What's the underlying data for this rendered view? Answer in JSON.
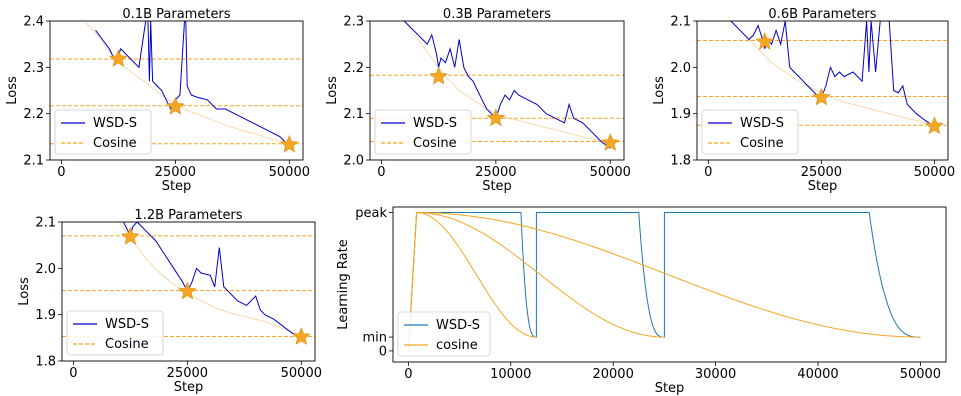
{
  "chart_data": [
    {
      "type": "line",
      "title": "0.1B Parameters",
      "xlabel": "Step",
      "ylabel": "Loss",
      "xlim": [
        -2500,
        53000
      ],
      "ylim": [
        2.1,
        2.4
      ],
      "xticks": [
        0,
        25000,
        50000
      ],
      "yticks": [
        2.1,
        2.2,
        2.3,
        2.4
      ],
      "yticklabels": [
        "2.1",
        "2.2",
        "2.3",
        "2.4"
      ],
      "legend_position": "lower-left",
      "series": [
        {
          "name": "WSD-S",
          "color": "#0000cc",
          "style": "solid",
          "x": [
            7500,
            9000,
            10500,
            12000,
            12500,
            13000,
            15000,
            17000,
            18500,
            19000,
            19300,
            19600,
            20000,
            21000,
            22000,
            23000,
            24000,
            25000,
            26000,
            27000,
            27300,
            27600,
            28500,
            30000,
            32000,
            34000,
            36000,
            38000,
            40000,
            42000,
            44000,
            46000,
            48000,
            49000,
            50000
          ],
          "y": [
            2.38,
            2.36,
            2.34,
            2.31,
            2.325,
            2.34,
            2.32,
            2.3,
            2.4,
            2.4,
            2.27,
            2.4,
            2.27,
            2.26,
            2.25,
            2.23,
            2.21,
            2.23,
            2.24,
            2.4,
            2.4,
            2.26,
            2.24,
            2.235,
            2.23,
            2.21,
            2.21,
            2.2,
            2.19,
            2.18,
            2.17,
            2.16,
            2.15,
            2.14,
            2.13
          ]
        },
        {
          "name": "Cosine",
          "color": "#f5a623",
          "style": "dashed",
          "x": [
            5000,
            8000,
            10000,
            12000,
            14000,
            16000,
            18000,
            20000,
            22000,
            25000,
            28000,
            31000,
            34000,
            37000,
            40000,
            43000,
            46000,
            48000,
            50000
          ],
          "y": [
            2.4,
            2.37,
            2.34,
            2.315,
            2.3,
            2.285,
            2.27,
            2.255,
            2.24,
            2.22,
            2.205,
            2.195,
            2.183,
            2.172,
            2.163,
            2.155,
            2.145,
            2.14,
            2.135
          ]
        }
      ],
      "hlines": [
        2.318,
        2.217,
        2.135
      ],
      "stars": [
        [
          12500,
          2.318
        ],
        [
          25000,
          2.215
        ],
        [
          50000,
          2.133
        ]
      ]
    },
    {
      "type": "line",
      "title": "0.3B Parameters",
      "xlabel": "Step",
      "ylabel": "Loss",
      "xlim": [
        -2500,
        53000
      ],
      "ylim": [
        2.0,
        2.3
      ],
      "xticks": [
        0,
        25000,
        50000
      ],
      "yticks": [
        2.0,
        2.1,
        2.2,
        2.3
      ],
      "yticklabels": [
        "2.0",
        "2.1",
        "2.2",
        "2.3"
      ],
      "legend_position": "lower-left",
      "series": [
        {
          "name": "WSD-S",
          "color": "#0000cc",
          "style": "solid",
          "x": [
            5000,
            7000,
            9000,
            10000,
            11000,
            12000,
            12500,
            13000,
            14000,
            15000,
            16000,
            17000,
            18000,
            19000,
            20000,
            21000,
            22000,
            23000,
            24000,
            25000,
            26000,
            27000,
            28000,
            29000,
            30000,
            32000,
            34000,
            36000,
            38000,
            40000,
            41000,
            42000,
            44000,
            46000,
            48000,
            50000
          ],
          "y": [
            2.3,
            2.28,
            2.26,
            2.25,
            2.27,
            2.23,
            2.2,
            2.22,
            2.21,
            2.24,
            2.2,
            2.26,
            2.2,
            2.18,
            2.17,
            2.15,
            2.13,
            2.11,
            2.1,
            2.09,
            2.12,
            2.14,
            2.13,
            2.15,
            2.14,
            2.13,
            2.12,
            2.1,
            2.09,
            2.08,
            2.12,
            2.09,
            2.08,
            2.06,
            2.04,
            2.025
          ]
        },
        {
          "name": "Cosine",
          "color": "#f5a623",
          "style": "dashed",
          "x": [
            5000,
            8000,
            11000,
            14000,
            17000,
            20000,
            23000,
            26000,
            30000,
            34000,
            38000,
            42000,
            46000,
            50000
          ],
          "y": [
            2.3,
            2.26,
            2.22,
            2.18,
            2.15,
            2.13,
            2.11,
            2.095,
            2.085,
            2.075,
            2.065,
            2.055,
            2.045,
            2.035
          ]
        }
      ],
      "hlines": [
        2.183,
        2.09,
        2.04
      ],
      "stars": [
        [
          12500,
          2.18
        ],
        [
          25000,
          2.09
        ],
        [
          50000,
          2.037
        ]
      ]
    },
    {
      "type": "line",
      "title": "0.6B Parameters",
      "xlabel": "Step",
      "ylabel": "Loss",
      "xlim": [
        -2500,
        53000
      ],
      "ylim": [
        1.8,
        2.1
      ],
      "xticks": [
        0,
        25000,
        50000
      ],
      "yticks": [
        1.8,
        1.9,
        2.0,
        2.1
      ],
      "yticklabels": [
        "1.8",
        "1.9",
        "2.0",
        "2.1"
      ],
      "legend_position": "lower-left",
      "series": [
        {
          "name": "WSD-S",
          "color": "#0000cc",
          "style": "solid",
          "x": [
            5000,
            7000,
            9000,
            10000,
            11000,
            12000,
            12500,
            13000,
            14000,
            15000,
            16000,
            17000,
            18000,
            19000,
            20000,
            21000,
            22000,
            23000,
            24000,
            25000,
            26000,
            27000,
            28000,
            29000,
            30000,
            32000,
            34000,
            35000,
            35500,
            36000,
            37000,
            38000,
            39000,
            40000,
            41000,
            42000,
            43000,
            44000,
            46000,
            48000,
            50000
          ],
          "y": [
            2.1,
            2.08,
            2.06,
            2.07,
            2.09,
            2.06,
            2.04,
            2.06,
            2.05,
            2.08,
            2.05,
            2.1,
            2.0,
            1.99,
            1.98,
            1.97,
            1.96,
            1.95,
            1.94,
            1.935,
            1.96,
            2.0,
            1.98,
            1.99,
            1.98,
            1.99,
            1.97,
            2.1,
            1.99,
            2.1,
            1.99,
            2.1,
            2.1,
            2.1,
            1.95,
            1.945,
            1.96,
            1.92,
            1.9,
            1.885,
            1.872
          ]
        },
        {
          "name": "Cosine",
          "color": "#f5a623",
          "style": "dashed",
          "x": [
            5000,
            8000,
            11000,
            14000,
            17000,
            20000,
            23000,
            26000,
            30000,
            34000,
            38000,
            42000,
            46000,
            50000
          ],
          "y": [
            2.1,
            2.07,
            2.04,
            2.01,
            1.99,
            1.97,
            1.955,
            1.94,
            1.925,
            1.915,
            1.905,
            1.895,
            1.885,
            1.875
          ]
        }
      ],
      "hlines": [
        2.058,
        1.937,
        1.875
      ],
      "stars": [
        [
          12500,
          2.055
        ],
        [
          25000,
          1.935
        ],
        [
          50000,
          1.873
        ]
      ]
    },
    {
      "type": "line",
      "title": "1.2B Parameters",
      "xlabel": "Step",
      "ylabel": "Loss",
      "xlim": [
        -2500,
        53000
      ],
      "ylim": [
        1.8,
        2.1
      ],
      "xticks": [
        0,
        25000,
        50000
      ],
      "yticks": [
        1.8,
        1.9,
        2.0,
        2.1
      ],
      "yticklabels": [
        "1.8",
        "1.9",
        "2.0",
        "2.1"
      ],
      "legend_position": "lower-left",
      "series": [
        {
          "name": "WSD-S",
          "color": "#0000cc",
          "style": "solid",
          "x": [
            11000,
            12000,
            12500,
            13000,
            14000,
            15000,
            16000,
            17000,
            18000,
            20000,
            22000,
            24000,
            25000,
            26000,
            27000,
            28000,
            30000,
            31000,
            32000,
            33000,
            34000,
            36000,
            38000,
            40000,
            41000,
            42000,
            44000,
            46000,
            48000,
            50000
          ],
          "y": [
            2.1,
            2.08,
            2.07,
            2.09,
            2.1,
            2.09,
            2.08,
            2.07,
            2.06,
            2.03,
            2.0,
            1.97,
            1.95,
            1.97,
            2.0,
            1.99,
            1.985,
            1.96,
            2.045,
            1.96,
            1.95,
            1.93,
            1.92,
            1.94,
            1.91,
            1.9,
            1.89,
            1.875,
            1.86,
            1.852
          ]
        },
        {
          "name": "Cosine",
          "color": "#f5a623",
          "style": "dashed",
          "x": [
            10000,
            13000,
            16000,
            19000,
            22000,
            25000,
            28000,
            31000,
            34000,
            38000,
            42000,
            46000,
            50000
          ],
          "y": [
            2.1,
            2.06,
            2.02,
            1.99,
            1.965,
            1.945,
            1.93,
            1.915,
            1.905,
            1.895,
            1.885,
            1.87,
            1.855
          ]
        }
      ],
      "hlines": [
        2.07,
        1.952,
        1.853
      ],
      "stars": [
        [
          12500,
          2.068
        ],
        [
          25000,
          1.95
        ],
        [
          50000,
          1.852
        ]
      ]
    },
    {
      "type": "line",
      "title": "",
      "xlabel": "Step",
      "ylabel": "Learning Rate",
      "xlim": [
        -1500,
        52500
      ],
      "ylim": [
        -0.08,
        1.04
      ],
      "xticks": [
        0,
        10000,
        20000,
        30000,
        40000,
        50000
      ],
      "xticklabels": [
        "0",
        "10000",
        "20000",
        "30000",
        "40000",
        "50000"
      ],
      "yticks": [
        0,
        0.1,
        1.0
      ],
      "yticklabels": [
        "0",
        "min",
        "peak"
      ],
      "legend_position": "lower-left",
      "series": [
        {
          "name": "WSD-S",
          "color": "#1f77b4",
          "style": "solid",
          "schedule": "warmup-stable-decay with restarts at 12500, 25000, 50000"
        },
        {
          "name": "cosine",
          "color": "#f5a623",
          "style": "solid",
          "schedule": "cosine decays to min at 12500, 25000, 50000"
        }
      ]
    }
  ]
}
